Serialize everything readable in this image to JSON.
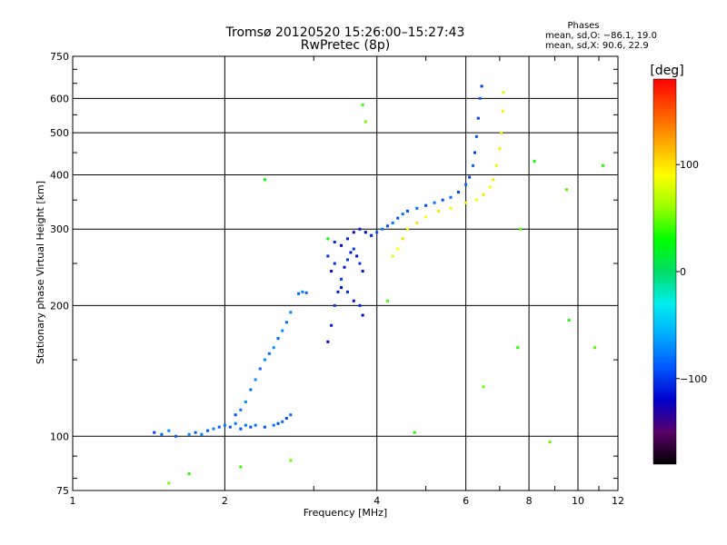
{
  "chart_data": {
    "type": "scatter",
    "title": "Tromsø 20120520 15:26:00–15:27:43",
    "subtitle": "RwPretec (8p)",
    "xlabel": "Frequency [MHz]",
    "ylabel": "Stationary phase Virtual Height [km]",
    "x_scale": "log",
    "y_scale": "log",
    "xlim": [
      1,
      12
    ],
    "ylim": [
      75,
      750
    ],
    "x_ticks": [
      1,
      2,
      4,
      6,
      8,
      10,
      12
    ],
    "x_tick_labels": [
      "1",
      "2",
      "4",
      "6",
      "8",
      "10",
      "12"
    ],
    "y_ticks": [
      75,
      100,
      200,
      300,
      400,
      500,
      600,
      750
    ],
    "y_tick_labels": [
      "75",
      "100",
      "200",
      "300",
      "400",
      "500",
      "600",
      "750"
    ],
    "grid": true,
    "phase_info": {
      "heading": "Phases",
      "line1": "mean, sd,O: −86.1, 19.0",
      "line2": "mean, sd,X:  90.6, 22.9"
    },
    "colorbar": {
      "label": "[deg]",
      "ticks": [
        100,
        0,
        -100
      ],
      "tick_labels": [
        "100",
        "0",
        "−100"
      ],
      "range": [
        -180,
        180
      ],
      "colormap": [
        "#000000",
        "#5a0068",
        "#0000cc",
        "#0055ff",
        "#00aaff",
        "#00eeee",
        "#00dd66",
        "#00ff00",
        "#99ff00",
        "#ffff00",
        "#ffaa00",
        "#ff5500",
        "#ff0000"
      ]
    },
    "series": [
      {
        "trace": "e-region-lower",
        "phase": -85,
        "points": [
          [
            1.45,
            102
          ],
          [
            1.5,
            101
          ],
          [
            1.55,
            103
          ],
          [
            1.6,
            100
          ],
          [
            1.7,
            101
          ],
          [
            1.75,
            102
          ],
          [
            1.8,
            101
          ],
          [
            1.85,
            103
          ],
          [
            1.9,
            104
          ],
          [
            1.95,
            105
          ],
          [
            2.0,
            106
          ],
          [
            2.05,
            105
          ],
          [
            2.1,
            107
          ],
          [
            2.15,
            104
          ],
          [
            2.2,
            106
          ],
          [
            2.25,
            105
          ],
          [
            2.3,
            106
          ],
          [
            2.4,
            105
          ],
          [
            2.5,
            106
          ],
          [
            2.55,
            107
          ],
          [
            2.6,
            108
          ],
          [
            2.65,
            110
          ],
          [
            2.7,
            112
          ]
        ]
      },
      {
        "trace": "e-region-rise",
        "phase": -80,
        "points": [
          [
            2.1,
            112
          ],
          [
            2.15,
            115
          ],
          [
            2.2,
            120
          ],
          [
            2.25,
            128
          ],
          [
            2.3,
            135
          ],
          [
            2.35,
            143
          ],
          [
            2.4,
            150
          ],
          [
            2.45,
            155
          ],
          [
            2.5,
            160
          ],
          [
            2.55,
            168
          ],
          [
            2.6,
            175
          ],
          [
            2.65,
            183
          ],
          [
            2.7,
            193
          ],
          [
            2.8,
            213
          ],
          [
            2.85,
            215
          ],
          [
            2.9,
            214
          ]
        ]
      },
      {
        "trace": "f1-cusp-band",
        "phase": -110,
        "points": [
          [
            3.2,
            165
          ],
          [
            3.25,
            180
          ],
          [
            3.3,
            200
          ],
          [
            3.35,
            215
          ],
          [
            3.4,
            230
          ],
          [
            3.45,
            245
          ],
          [
            3.5,
            255
          ],
          [
            3.55,
            265
          ],
          [
            3.6,
            270
          ],
          [
            3.65,
            260
          ],
          [
            3.7,
            250
          ],
          [
            3.75,
            240
          ],
          [
            3.2,
            260
          ],
          [
            3.25,
            240
          ],
          [
            3.3,
            250
          ],
          [
            3.4,
            220
          ],
          [
            3.5,
            215
          ],
          [
            3.6,
            205
          ],
          [
            3.7,
            200
          ],
          [
            3.75,
            190
          ],
          [
            3.3,
            280
          ],
          [
            3.4,
            275
          ],
          [
            3.5,
            285
          ],
          [
            3.6,
            295
          ],
          [
            3.7,
            300
          ],
          [
            3.8,
            295
          ],
          [
            3.9,
            290
          ]
        ]
      },
      {
        "trace": "f2-ordinary",
        "phase": -90,
        "points": [
          [
            3.9,
            290
          ],
          [
            4.0,
            295
          ],
          [
            4.1,
            300
          ],
          [
            4.2,
            305
          ],
          [
            4.3,
            310
          ],
          [
            4.4,
            318
          ],
          [
            4.5,
            325
          ],
          [
            4.6,
            330
          ],
          [
            4.8,
            335
          ],
          [
            5.0,
            340
          ],
          [
            5.2,
            345
          ],
          [
            5.4,
            350
          ],
          [
            5.6,
            355
          ],
          [
            5.8,
            365
          ],
          [
            6.0,
            380
          ],
          [
            6.1,
            395
          ],
          [
            6.2,
            420
          ],
          [
            6.25,
            450
          ],
          [
            6.3,
            490
          ],
          [
            6.35,
            540
          ],
          [
            6.4,
            600
          ],
          [
            6.45,
            640
          ]
        ]
      },
      {
        "trace": "f2-extraordinary",
        "phase": 90,
        "points": [
          [
            4.3,
            260
          ],
          [
            4.4,
            270
          ],
          [
            4.5,
            285
          ],
          [
            4.6,
            300
          ],
          [
            4.8,
            310
          ],
          [
            5.0,
            320
          ],
          [
            5.3,
            330
          ],
          [
            5.6,
            335
          ],
          [
            6.0,
            345
          ],
          [
            6.3,
            350
          ],
          [
            6.5,
            360
          ],
          [
            6.7,
            375
          ],
          [
            6.8,
            390
          ],
          [
            6.9,
            420
          ],
          [
            7.0,
            460
          ],
          [
            7.05,
            500
          ],
          [
            7.1,
            560
          ],
          [
            7.12,
            620
          ]
        ]
      },
      {
        "trace": "scattered-noise",
        "phase": 40,
        "points": [
          [
            2.4,
            390
          ],
          [
            3.75,
            580
          ],
          [
            3.8,
            530
          ],
          [
            2.15,
            85
          ],
          [
            2.7,
            88
          ],
          [
            1.7,
            82
          ],
          [
            1.55,
            78
          ],
          [
            4.75,
            102
          ],
          [
            6.5,
            130
          ],
          [
            7.6,
            160
          ],
          [
            8.8,
            97
          ],
          [
            9.6,
            185
          ],
          [
            10.8,
            160
          ],
          [
            11.2,
            420
          ],
          [
            9.5,
            370
          ],
          [
            8.2,
            430
          ],
          [
            7.7,
            300
          ],
          [
            3.2,
            285
          ],
          [
            4.2,
            205
          ]
        ]
      }
    ]
  }
}
